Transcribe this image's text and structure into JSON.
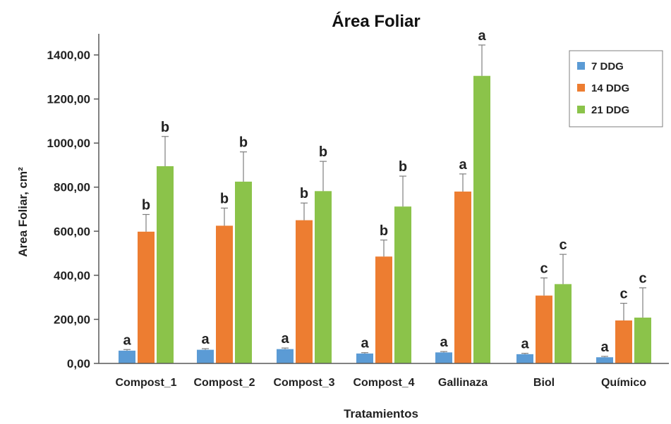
{
  "chart_data": {
    "type": "bar",
    "title": "Área Foliar",
    "xlabel": "Tratamientos",
    "ylabel": "Area Foliar, cm²",
    "ylim": [
      0,
      1400
    ],
    "yticks": [
      0,
      200,
      400,
      600,
      800,
      1000,
      1200,
      1400
    ],
    "ytick_labels": [
      "0,00",
      "200,00",
      "400,00",
      "600,00",
      "800,00",
      "1000,00",
      "1200,00",
      "1400,00"
    ],
    "grid": false,
    "legend_position": "top-right",
    "categories": [
      "Compost_1",
      "Compost_2",
      "Compost_3",
      "Compost_4",
      "Gallinaza",
      "Biol",
      "Químico"
    ],
    "series": [
      {
        "name": "7 DDG",
        "color": "#5b9bd5",
        "values": [
          58,
          62,
          65,
          45,
          50,
          42,
          28
        ],
        "errors": [
          5,
          5,
          5,
          4,
          4,
          4,
          4
        ],
        "labels": [
          "a",
          "a",
          "a",
          "a",
          "a",
          "a",
          "a"
        ]
      },
      {
        "name": "14 DDG",
        "color": "#ed7d31",
        "values": [
          598,
          625,
          650,
          485,
          780,
          308,
          195
        ],
        "errors": [
          78,
          80,
          78,
          75,
          80,
          80,
          78
        ],
        "labels": [
          "b",
          "b",
          "b",
          "b",
          "a",
          "c",
          "c"
        ]
      },
      {
        "name": "21 DDG",
        "color": "#8bc34a",
        "values": [
          895,
          825,
          782,
          712,
          1305,
          360,
          208
        ],
        "errors": [
          135,
          135,
          135,
          138,
          140,
          135,
          135
        ],
        "labels": [
          "b",
          "b",
          "b",
          "b",
          "a",
          "c",
          "c"
        ]
      }
    ]
  }
}
